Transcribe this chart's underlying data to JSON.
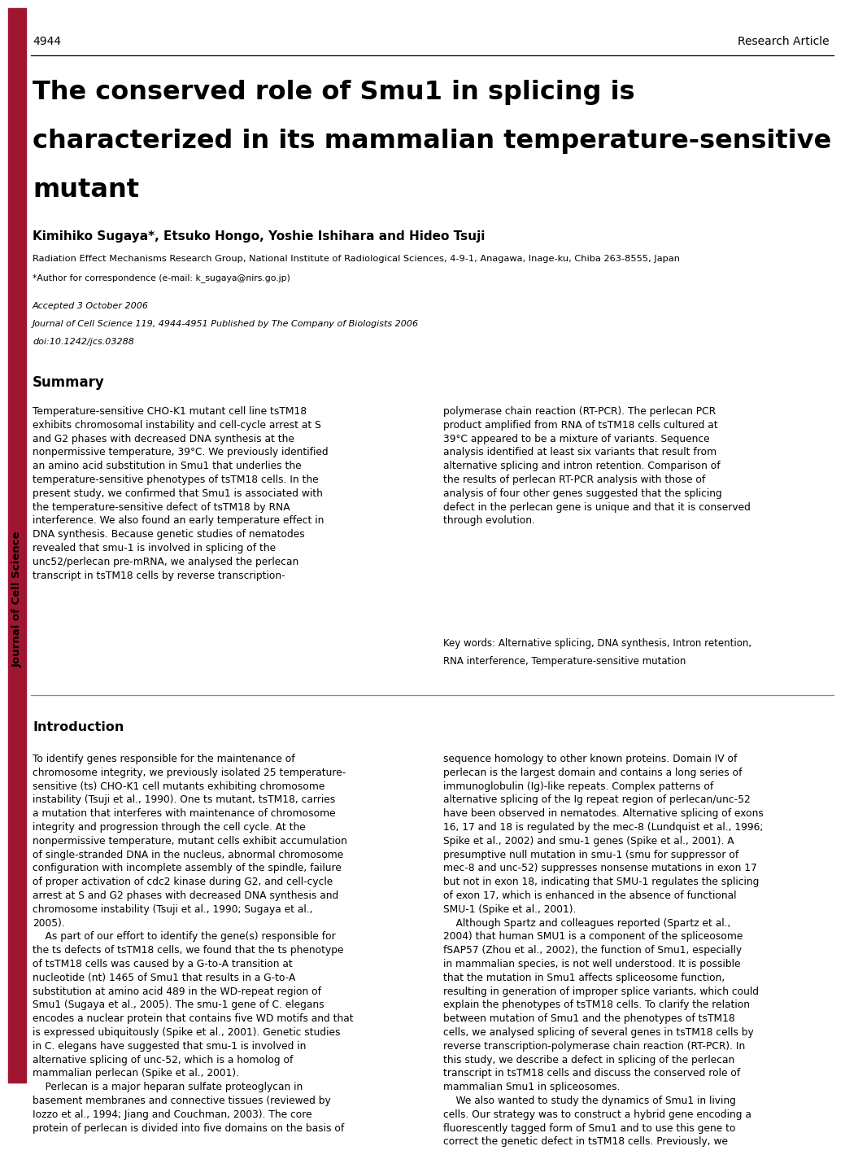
{
  "page_width": 10.2,
  "page_height": 13.2,
  "bg_color": "#ffffff",
  "red_bar_color": "#a01530",
  "page_num": "4944",
  "article_type": "Research Article",
  "title_line1": "The conserved role of Smu1 in splicing is",
  "title_line2": "characterized in its mammalian temperature-sensitive",
  "title_line3": "mutant",
  "authors": "Kimihiko Sugaya*, Etsuko Hongo, Yoshie Ishihara and Hideo Tsuji",
  "affiliation": "Radiation Effect Mechanisms Research Group, National Institute of Radiological Sciences, 4-9-1, Anagawa, Inage-ku, Chiba 263-8555, Japan",
  "correspondence": "*Author for correspondence (e-mail: k_sugaya@nirs.go.jp)",
  "accepted": "Accepted 3 October 2006",
  "journal_info": "Journal of Cell Science 119, 4944-4951 Published by The Company of Biologists 2006",
  "doi": "doi:10.1242/jcs.03288",
  "summary_title": "Summary",
  "summary_left": "Temperature-sensitive CHO-K1 mutant cell line tsTM18\nexhibits chromosomal instability and cell-cycle arrest at S\nand G2 phases with decreased DNA synthesis at the\nnonpermissive temperature, 39°C. We previously identified\nan amino acid substitution in Smu1 that underlies the\ntemperature-sensitive phenotypes of tsTM18 cells. In the\npresent study, we confirmed that Smu1 is associated with\nthe temperature-sensitive defect of tsTM18 by RNA\ninterference. We also found an early temperature effect in\nDNA synthesis. Because genetic studies of nematodes\nrevealed that smu-1 is involved in splicing of the\nunc52/perlecan pre-mRNA, we analysed the perlecan\ntranscript in tsTM18 cells by reverse transcription-",
  "summary_right": "polymerase chain reaction (RT-PCR). The perlecan PCR\nproduct amplified from RNA of tsTM18 cells cultured at\n39°C appeared to be a mixture of variants. Sequence\nanalysis identified at least six variants that result from\nalternative splicing and intron retention. Comparison of\nthe results of perlecan RT-PCR analysis with those of\nanalysis of four other genes suggested that the splicing\ndefect in the perlecan gene is unique and that it is conserved\nthrough evolution.",
  "keywords_line1": "Key words: Alternative splicing, DNA synthesis, Intron retention,",
  "keywords_line2": "RNA interference, Temperature-sensitive mutation",
  "intro_title": "Introduction",
  "intro_left": "To identify genes responsible for the maintenance of\nchromosome integrity, we previously isolated 25 temperature-\nsensitive (ts) CHO-K1 cell mutants exhibiting chromosome\ninstability (Tsuji et al., 1990). One ts mutant, tsTM18, carries\na mutation that interferes with maintenance of chromosome\nintegrity and progression through the cell cycle. At the\nnonpermissive temperature, mutant cells exhibit accumulation\nof single-stranded DNA in the nucleus, abnormal chromosome\nconfiguration with incomplete assembly of the spindle, failure\nof proper activation of cdc2 kinase during G2, and cell-cycle\narrest at S and G2 phases with decreased DNA synthesis and\nchromosome instability (Tsuji et al., 1990; Sugaya et al.,\n2005).\n    As part of our effort to identify the gene(s) responsible for\nthe ts defects of tsTM18 cells, we found that the ts phenotype\nof tsTM18 cells was caused by a G-to-A transition at\nnucleotide (nt) 1465 of Smu1 that results in a G-to-A\nsubstitution at amino acid 489 in the WD-repeat region of\nSmu1 (Sugaya et al., 2005). The smu-1 gene of C. elegans\nencodes a nuclear protein that contains five WD motifs and that\nis expressed ubiquitously (Spike et al., 2001). Genetic studies\nin C. elegans have suggested that smu-1 is involved in\nalternative splicing of unc-52, which is a homolog of\nmammalian perlecan (Spike et al., 2001).\n    Perlecan is a major heparan sulfate proteoglycan in\nbasement membranes and connective tissues (reviewed by\nIozzo et al., 1994; Jiang and Couchman, 2003). The core\nprotein of perlecan is divided into five domains on the basis of",
  "intro_right": "sequence homology to other known proteins. Domain IV of\nperlecan is the largest domain and contains a long series of\nimmunoglobulin (Ig)-like repeats. Complex patterns of\nalternative splicing of the Ig repeat region of perlecan/unc-52\nhave been observed in nematodes. Alternative splicing of exons\n16, 17 and 18 is regulated by the mec-8 (Lundquist et al., 1996;\nSpike et al., 2002) and smu-1 genes (Spike et al., 2001). A\npresumptive null mutation in smu-1 (smu for suppressor of\nmec-8 and unc-52) suppresses nonsense mutations in exon 17\nbut not in exon 18, indicating that SMU-1 regulates the splicing\nof exon 17, which is enhanced in the absence of functional\nSMU-1 (Spike et al., 2001).\n    Although Spartz and colleagues reported (Spartz et al.,\n2004) that human SMU1 is a component of the spliceosome\nfSAP57 (Zhou et al., 2002), the function of Smu1, especially\nin mammalian species, is not well understood. It is possible\nthat the mutation in Smu1 affects spliceosome function,\nresulting in generation of improper splice variants, which could\nexplain the phenotypes of tsTM18 cells. To clarify the relation\nbetween mutation of Smu1 and the phenotypes of tsTM18\ncells, we analysed splicing of several genes in tsTM18 cells by\nreverse transcription-polymerase chain reaction (RT-PCR). In\nthis study, we describe a defect in splicing of the perlecan\ntranscript in tsTM18 cells and discuss the conserved role of\nmammalian Smu1 in spliceosomes.\n    We also wanted to study the dynamics of Smu1 in living\ncells. Our strategy was to construct a hybrid gene encoding a\nfluorescently tagged form of Smu1 and to use this gene to\ncorrect the genetic defect in tsTM18 cells. Previously, we",
  "journal_sidebar": "Journal of Cell Science"
}
